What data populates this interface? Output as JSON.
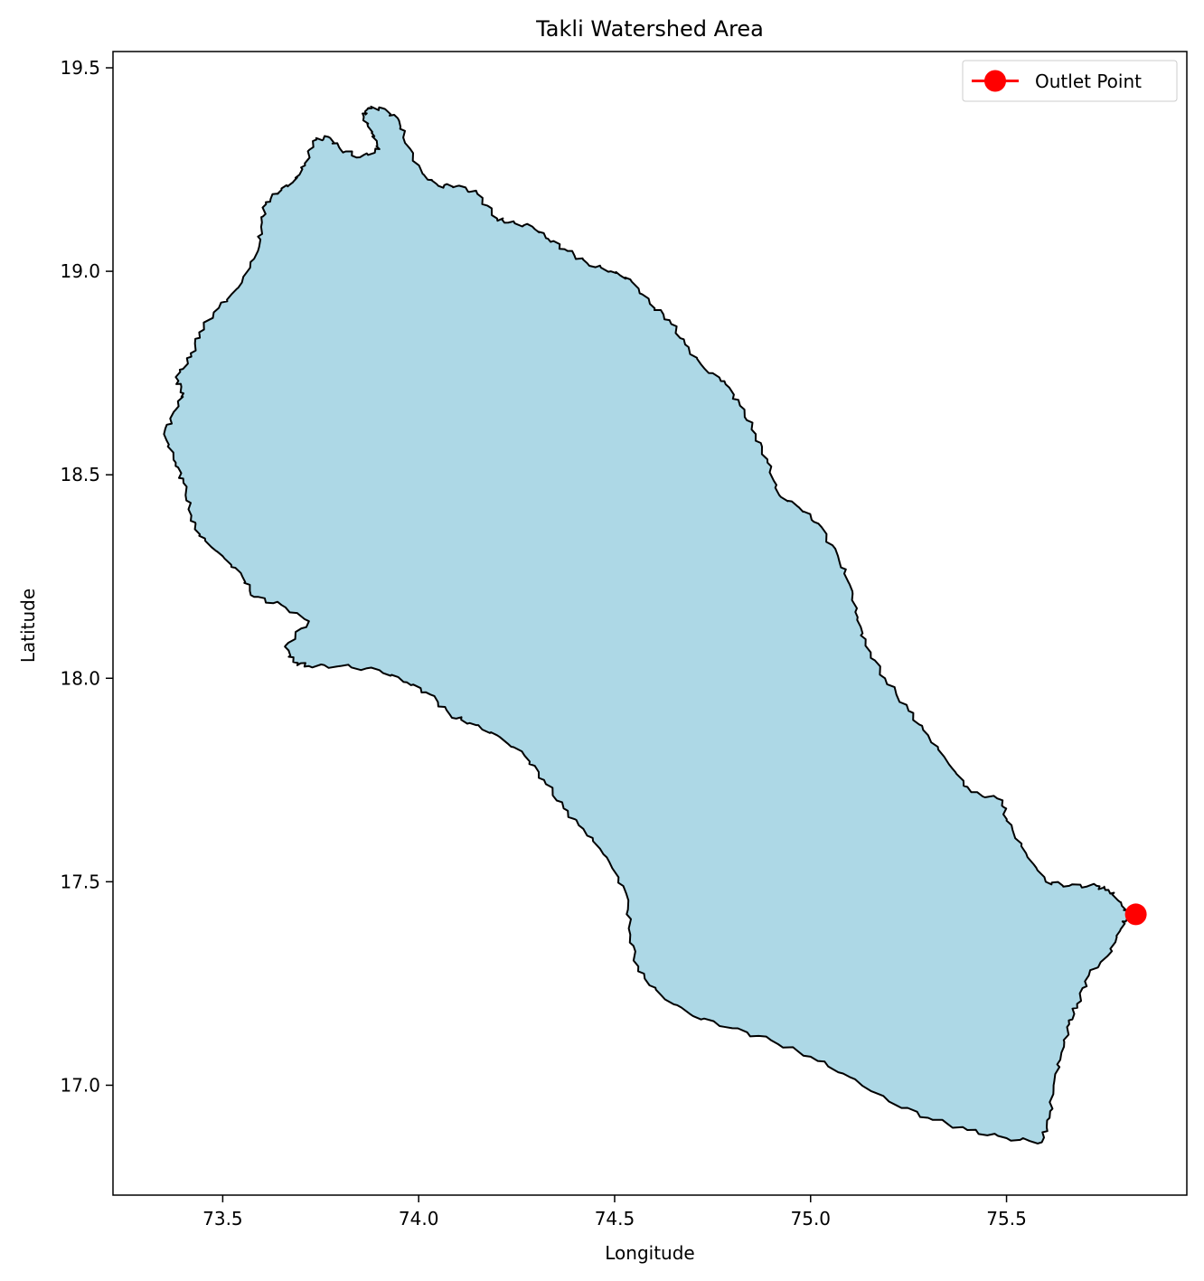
{
  "chart_data": {
    "type": "map",
    "title": "Takli Watershed Area",
    "xlabel": "Longitude",
    "ylabel": "Latitude",
    "xlim": [
      73.22,
      75.96
    ],
    "ylim": [
      16.73,
      19.54
    ],
    "x_ticks": [
      73.5,
      74.0,
      74.5,
      75.0,
      75.5
    ],
    "x_tick_labels": [
      "73.5",
      "74.0",
      "74.5",
      "75.0",
      "75.5"
    ],
    "y_ticks": [
      17.0,
      17.5,
      18.0,
      18.5,
      19.0,
      19.5
    ],
    "y_tick_labels": [
      "17.0",
      "17.5",
      "18.0",
      "18.5",
      "19.0",
      "19.5"
    ],
    "legend": {
      "position": "top-right",
      "entries": [
        {
          "label": "Outlet Point",
          "color": "#ff0000",
          "marker": "circle"
        }
      ]
    },
    "watershed": {
      "fill_color": "#add8e6",
      "edge_color": "#000000",
      "boundary": [
        [
          73.87,
          19.4
        ],
        [
          73.91,
          19.4
        ],
        [
          73.95,
          19.37
        ],
        [
          73.97,
          19.31
        ],
        [
          74.01,
          19.24
        ],
        [
          74.05,
          19.21
        ],
        [
          74.1,
          19.21
        ],
        [
          74.15,
          19.19
        ],
        [
          74.2,
          19.13
        ],
        [
          74.23,
          19.12
        ],
        [
          74.29,
          19.11
        ],
        [
          74.33,
          19.08
        ],
        [
          74.38,
          19.05
        ],
        [
          74.43,
          19.02
        ],
        [
          74.49,
          19.0
        ],
        [
          74.54,
          18.98
        ],
        [
          74.59,
          18.92
        ],
        [
          74.64,
          18.88
        ],
        [
          74.68,
          18.82
        ],
        [
          74.73,
          18.76
        ],
        [
          74.78,
          18.73
        ],
        [
          74.82,
          18.67
        ],
        [
          74.86,
          18.6
        ],
        [
          74.89,
          18.53
        ],
        [
          74.92,
          18.45
        ],
        [
          74.97,
          18.42
        ],
        [
          75.02,
          18.38
        ],
        [
          75.07,
          18.3
        ],
        [
          75.1,
          18.23
        ],
        [
          75.12,
          18.15
        ],
        [
          75.14,
          18.08
        ],
        [
          75.19,
          18.0
        ],
        [
          75.25,
          17.92
        ],
        [
          75.3,
          17.86
        ],
        [
          75.36,
          17.78
        ],
        [
          75.41,
          17.72
        ],
        [
          75.49,
          17.7
        ],
        [
          75.5,
          17.65
        ],
        [
          75.55,
          17.57
        ],
        [
          75.6,
          17.5
        ],
        [
          75.66,
          17.49
        ],
        [
          75.73,
          17.49
        ],
        [
          75.76,
          17.48
        ],
        [
          75.79,
          17.45
        ],
        [
          75.81,
          17.42
        ],
        [
          75.79,
          17.38
        ],
        [
          75.76,
          17.32
        ],
        [
          75.71,
          17.27
        ],
        [
          75.68,
          17.2
        ],
        [
          75.66,
          17.15
        ],
        [
          75.64,
          17.08
        ],
        [
          75.62,
          17.0
        ],
        [
          75.61,
          16.92
        ],
        [
          75.59,
          16.86
        ],
        [
          75.5,
          16.87
        ],
        [
          75.4,
          16.89
        ],
        [
          75.3,
          16.92
        ],
        [
          75.2,
          16.96
        ],
        [
          75.1,
          17.02
        ],
        [
          75.0,
          17.07
        ],
        [
          74.9,
          17.11
        ],
        [
          74.8,
          17.14
        ],
        [
          74.7,
          17.17
        ],
        [
          74.62,
          17.22
        ],
        [
          74.56,
          17.28
        ],
        [
          74.54,
          17.37
        ],
        [
          74.53,
          17.47
        ],
        [
          74.48,
          17.56
        ],
        [
          74.42,
          17.63
        ],
        [
          74.37,
          17.68
        ],
        [
          74.32,
          17.75
        ],
        [
          74.27,
          17.81
        ],
        [
          74.2,
          17.86
        ],
        [
          74.13,
          17.89
        ],
        [
          74.08,
          17.91
        ],
        [
          74.03,
          17.96
        ],
        [
          73.97,
          17.99
        ],
        [
          73.9,
          18.02
        ],
        [
          73.8,
          18.03
        ],
        [
          73.72,
          18.03
        ],
        [
          73.68,
          18.04
        ],
        [
          73.66,
          18.08
        ],
        [
          73.72,
          18.14
        ],
        [
          73.65,
          18.18
        ],
        [
          73.58,
          18.2
        ],
        [
          73.55,
          18.25
        ],
        [
          73.5,
          18.3
        ],
        [
          73.44,
          18.35
        ],
        [
          73.42,
          18.4
        ],
        [
          73.4,
          18.48
        ],
        [
          73.38,
          18.53
        ],
        [
          73.35,
          18.6
        ],
        [
          73.38,
          18.66
        ],
        [
          73.4,
          18.7
        ],
        [
          73.38,
          18.74
        ],
        [
          73.42,
          18.79
        ],
        [
          73.44,
          18.85
        ],
        [
          73.49,
          18.91
        ],
        [
          73.54,
          18.96
        ],
        [
          73.59,
          19.05
        ],
        [
          73.6,
          19.12
        ],
        [
          73.61,
          19.17
        ],
        [
          73.65,
          19.2
        ],
        [
          73.68,
          19.22
        ],
        [
          73.71,
          19.26
        ],
        [
          73.73,
          19.32
        ],
        [
          73.77,
          19.33
        ],
        [
          73.8,
          19.3
        ],
        [
          73.85,
          19.28
        ],
        [
          73.9,
          19.3
        ],
        [
          73.88,
          19.34
        ],
        [
          73.86,
          19.38
        ]
      ]
    },
    "outlet_point": {
      "lon": 75.83,
      "lat": 17.42,
      "color": "#ff0000"
    }
  }
}
